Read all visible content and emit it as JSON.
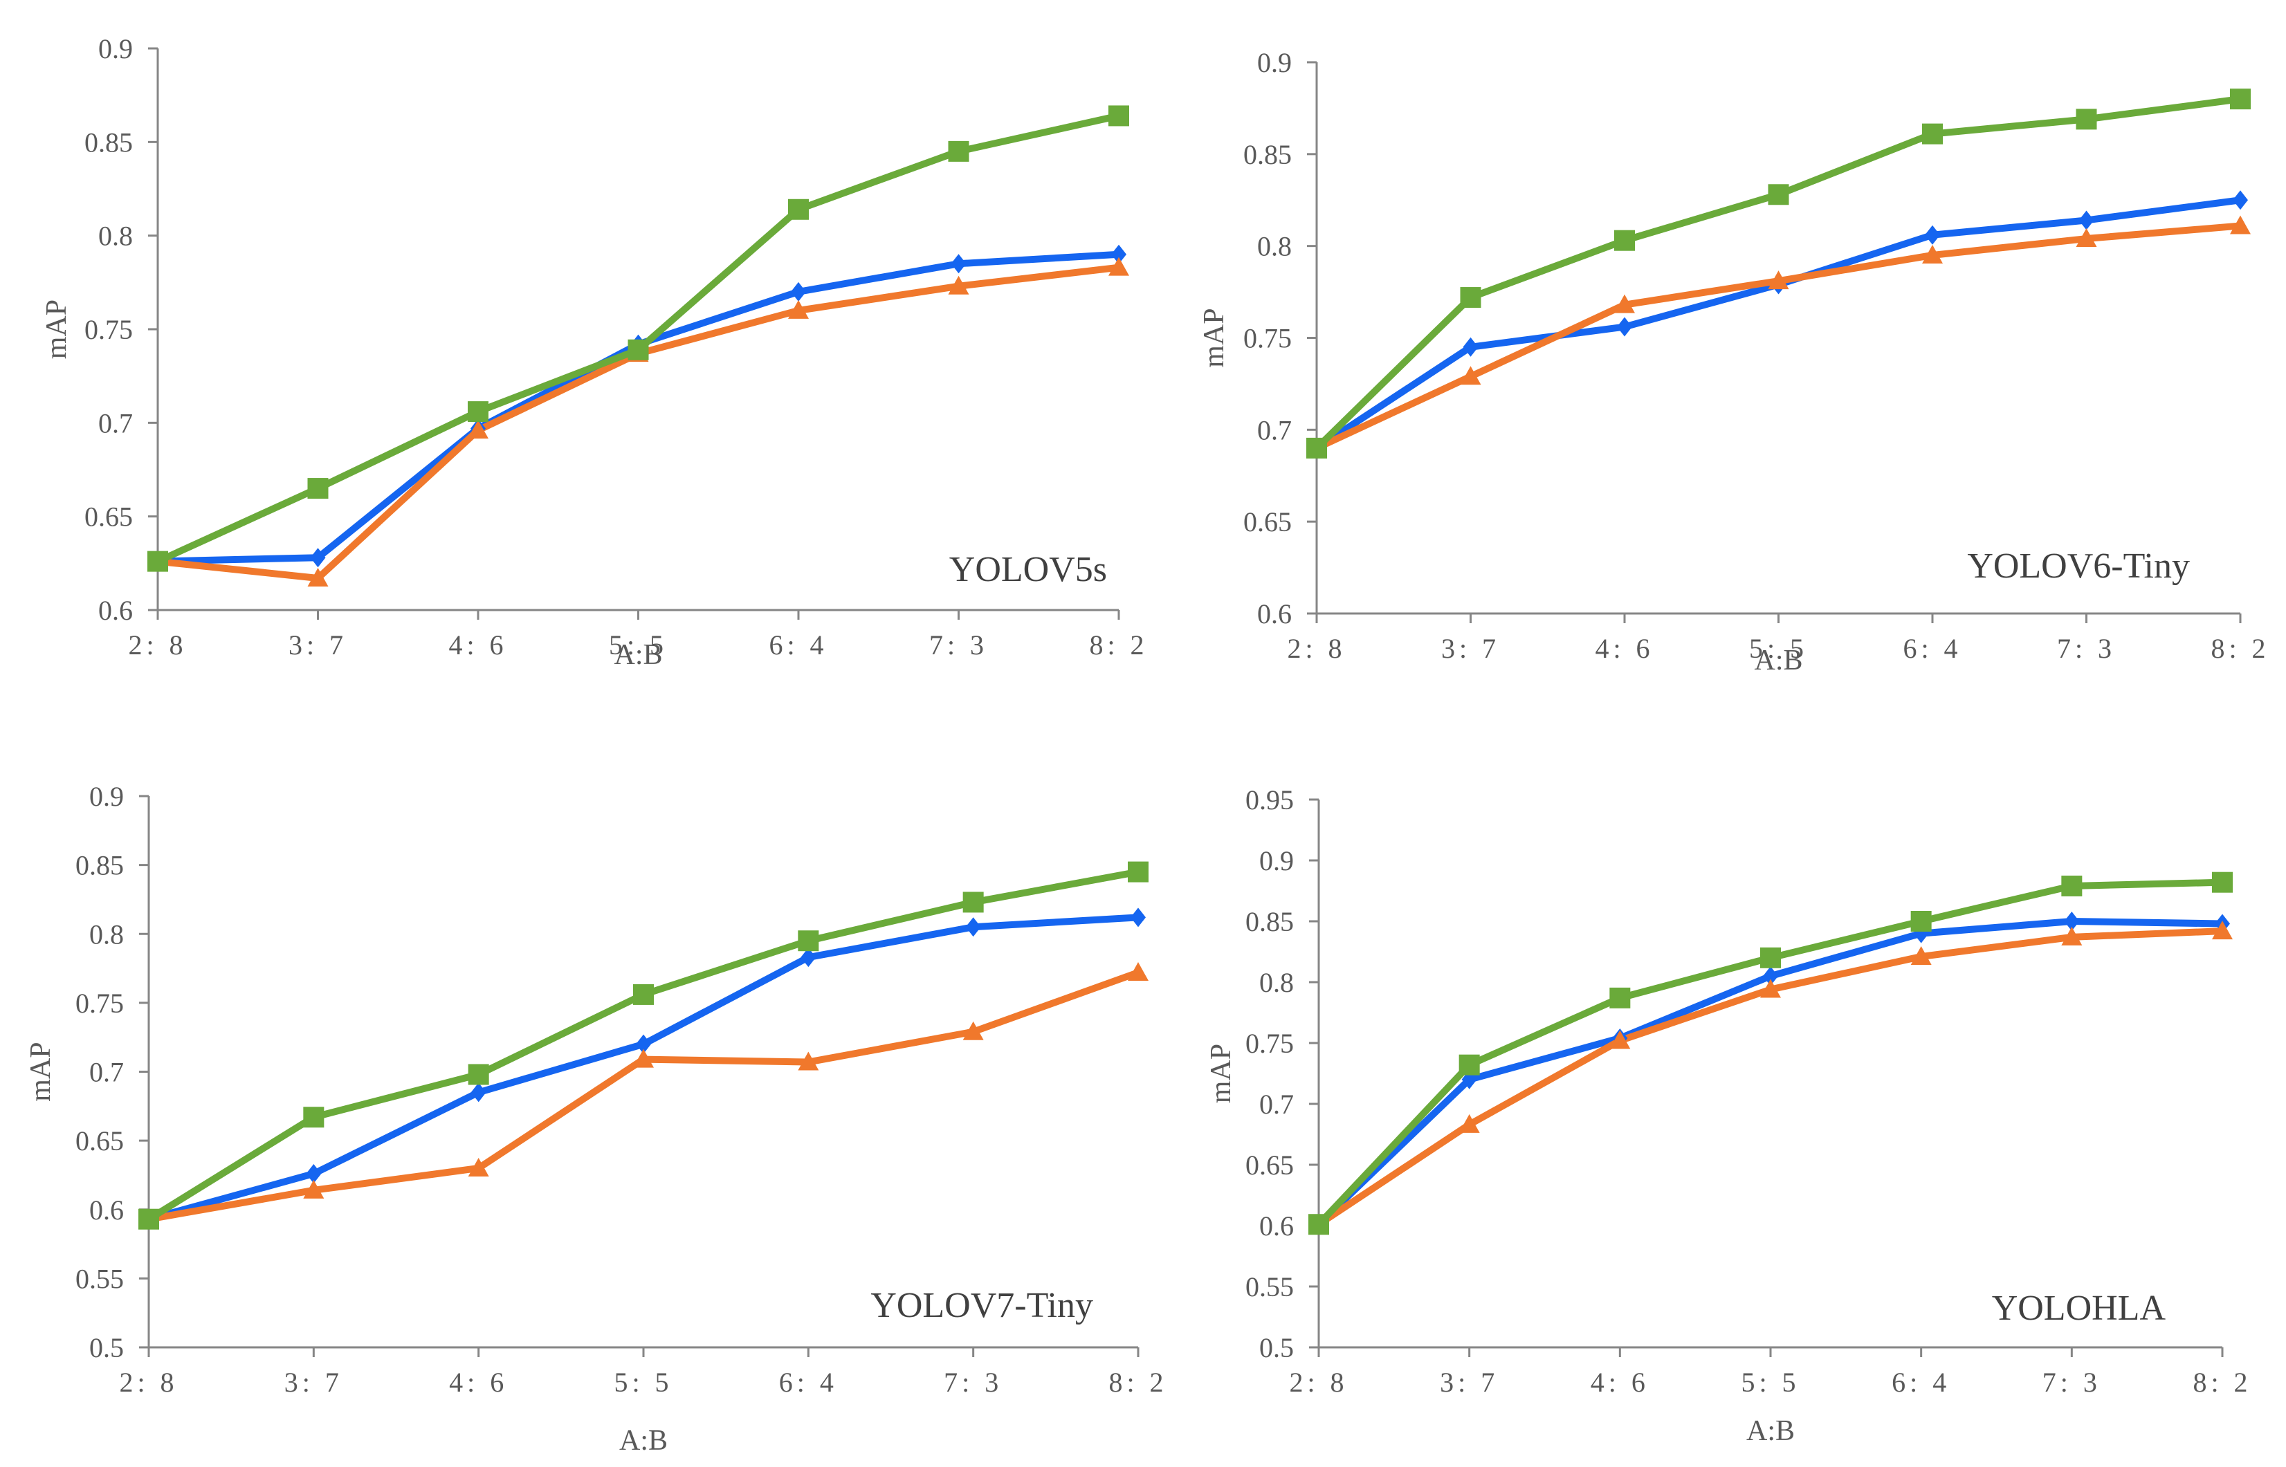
{
  "colors": {
    "blue": "#1565f0",
    "orange": "#f0782c",
    "green": "#6aaa3a"
  },
  "chart_data": [
    {
      "type": "line",
      "title": "YOLOV5s",
      "xlabel": "A:B",
      "ylabel": "mAP",
      "categories": [
        "2: 8",
        "3: 7",
        "4: 6",
        "5: 5",
        "6: 4",
        "7: 3",
        "8: 2"
      ],
      "ylim": [
        0.6,
        0.9
      ],
      "yticks": [
        "0.6",
        "0.65",
        "0.7",
        "0.75",
        "0.8",
        "0.85",
        "0.9"
      ],
      "series": [
        {
          "name": "blue-diamond",
          "color": "blue",
          "marker": "diamond",
          "values": [
            0.626,
            0.628,
            0.697,
            0.742,
            0.77,
            0.785,
            0.79
          ]
        },
        {
          "name": "orange-triangle",
          "color": "orange",
          "marker": "triangle",
          "values": [
            0.626,
            0.617,
            0.696,
            0.737,
            0.76,
            0.773,
            0.783
          ]
        },
        {
          "name": "green-square",
          "color": "green",
          "marker": "square",
          "values": [
            0.626,
            0.665,
            0.706,
            0.739,
            0.814,
            0.845,
            0.864
          ]
        }
      ]
    },
    {
      "type": "line",
      "title": "YOLOV6-Tiny",
      "xlabel": "A:B",
      "ylabel": "mAP",
      "categories": [
        "2: 8",
        "3: 7",
        "4: 6",
        "5: 5",
        "6: 4",
        "7: 3",
        "8: 2"
      ],
      "ylim": [
        0.6,
        0.9
      ],
      "yticks": [
        "0.6",
        "0.65",
        "0.7",
        "0.75",
        "0.8",
        "0.85",
        "0.9"
      ],
      "series": [
        {
          "name": "blue-diamond",
          "color": "blue",
          "marker": "diamond",
          "values": [
            0.69,
            0.745,
            0.756,
            0.779,
            0.806,
            0.814,
            0.825
          ]
        },
        {
          "name": "orange-triangle",
          "color": "orange",
          "marker": "triangle",
          "values": [
            0.69,
            0.729,
            0.768,
            0.781,
            0.795,
            0.804,
            0.811
          ]
        },
        {
          "name": "green-square",
          "color": "green",
          "marker": "square",
          "values": [
            0.69,
            0.772,
            0.803,
            0.828,
            0.861,
            0.869,
            0.88
          ]
        }
      ]
    },
    {
      "type": "line",
      "title": "YOLOV7-Tiny",
      "xlabel": "A:B",
      "ylabel": "mAP",
      "categories": [
        "2: 8",
        "3: 7",
        "4: 6",
        "5: 5",
        "6: 4",
        "7: 3",
        "8: 2"
      ],
      "ylim": [
        0.5,
        0.9
      ],
      "yticks": [
        "0.5",
        "0.55",
        "0.6",
        "0.65",
        "0.7",
        "0.75",
        "0.8",
        "0.85",
        "0.9"
      ],
      "series": [
        {
          "name": "blue-diamond",
          "color": "blue",
          "marker": "diamond",
          "values": [
            0.593,
            0.626,
            0.685,
            0.72,
            0.783,
            0.805,
            0.812
          ]
        },
        {
          "name": "orange-triangle",
          "color": "orange",
          "marker": "triangle",
          "values": [
            0.593,
            0.614,
            0.63,
            0.709,
            0.707,
            0.729,
            0.772
          ]
        },
        {
          "name": "green-square",
          "color": "green",
          "marker": "square",
          "values": [
            0.593,
            0.667,
            0.698,
            0.756,
            0.795,
            0.823,
            0.845
          ]
        }
      ]
    },
    {
      "type": "line",
      "title": "YOLOHLA",
      "xlabel": "A:B",
      "ylabel": "mAP",
      "categories": [
        "2: 8",
        "3: 7",
        "4: 6",
        "5: 5",
        "6: 4",
        "7: 3",
        "8: 2"
      ],
      "ylim": [
        0.5,
        0.95
      ],
      "yticks": [
        "0.5",
        "0.55",
        "0.6",
        "0.65",
        "0.7",
        "0.75",
        "0.8",
        "0.85",
        "0.9",
        "0.95"
      ],
      "series": [
        {
          "name": "blue-diamond",
          "color": "blue",
          "marker": "diamond",
          "values": [
            0.601,
            0.72,
            0.754,
            0.805,
            0.84,
            0.85,
            0.848
          ]
        },
        {
          "name": "orange-triangle",
          "color": "orange",
          "marker": "triangle",
          "values": [
            0.601,
            0.683,
            0.752,
            0.794,
            0.821,
            0.837,
            0.842
          ]
        },
        {
          "name": "green-square",
          "color": "green",
          "marker": "square",
          "values": [
            0.601,
            0.732,
            0.787,
            0.82,
            0.85,
            0.879,
            0.882
          ]
        }
      ]
    }
  ]
}
